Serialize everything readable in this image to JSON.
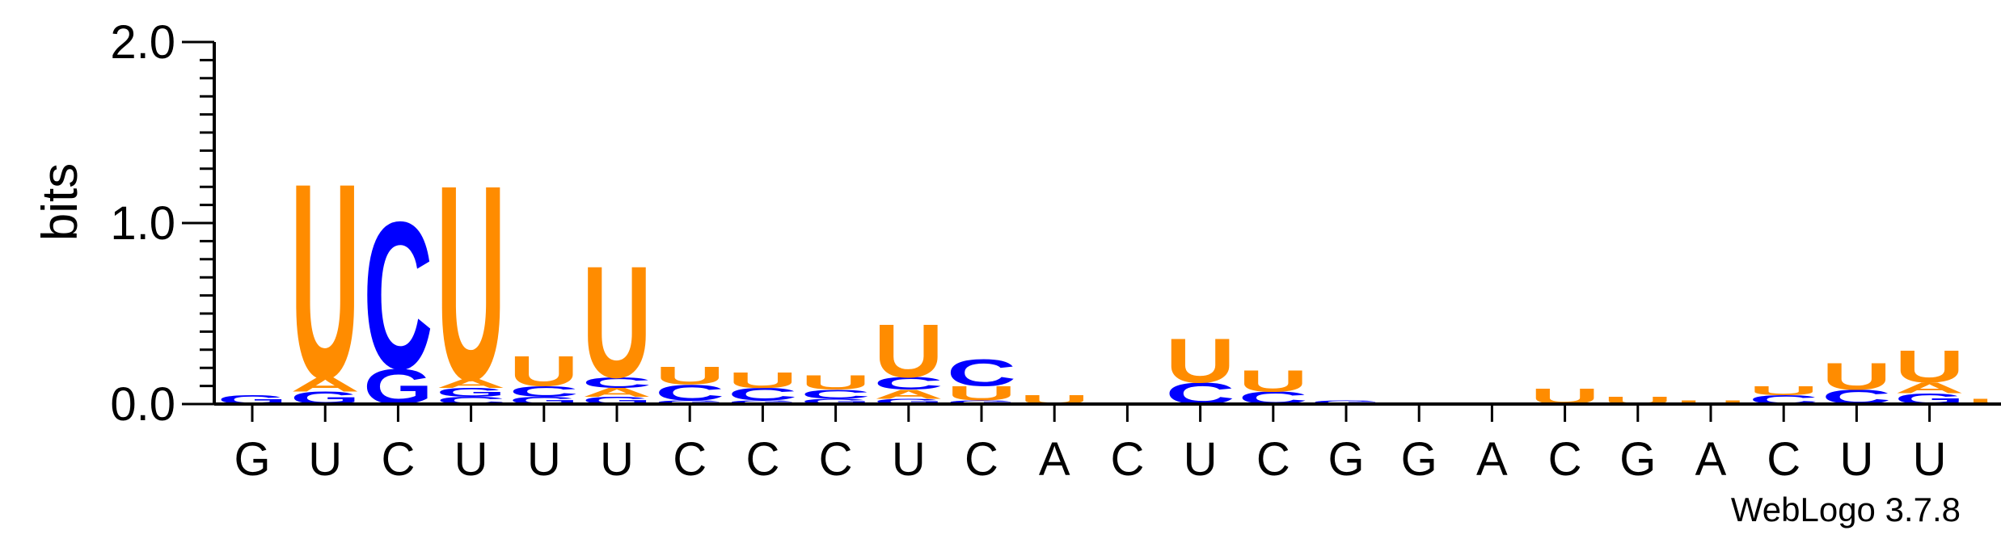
{
  "chart_data": {
    "type": "sequence-logo",
    "ylabel": "bits",
    "ylim": [
      0,
      2.0
    ],
    "y_ticks": [
      "0.0",
      "1.0",
      "2.0"
    ],
    "categories": [
      "G",
      "U",
      "C",
      "U",
      "U",
      "U",
      "C",
      "C",
      "C",
      "U",
      "C",
      "A",
      "C",
      "U",
      "C",
      "G",
      "G",
      "A",
      "C",
      "G",
      "A",
      "C",
      "U",
      "U"
    ],
    "footer": "WebLogo 3.7.8",
    "letter_colors": {
      "U": "#ff8c00",
      "C": "#0000ff",
      "G": "#0000ff",
      "A": "#ff8c00"
    },
    "stacks": [
      [
        [
          "G",
          0.05
        ]
      ],
      [
        [
          "G",
          0.07
        ],
        [
          "A",
          0.08
        ],
        [
          "U",
          1.1
        ]
      ],
      [
        [
          "G",
          0.2
        ],
        [
          "C",
          0.83
        ]
      ],
      [
        [
          "C",
          0.04
        ],
        [
          "G",
          0.05
        ],
        [
          "A",
          0.05
        ],
        [
          "U",
          1.1
        ]
      ],
      [
        [
          "G",
          0.04
        ],
        [
          "C",
          0.06
        ],
        [
          "U",
          0.17
        ]
      ],
      [
        [
          "G",
          0.04
        ],
        [
          "A",
          0.05
        ],
        [
          "C",
          0.06
        ],
        [
          "U",
          0.63
        ]
      ],
      [
        [
          "G",
          0.02
        ],
        [
          "C",
          0.09
        ],
        [
          "U",
          0.1
        ]
      ],
      [
        [
          "G",
          0.02
        ],
        [
          "C",
          0.07
        ],
        [
          "U",
          0.09
        ]
      ],
      [
        [
          "G",
          0.03
        ],
        [
          "C",
          0.05
        ],
        [
          "U",
          0.08
        ]
      ],
      [
        [
          "G",
          0.03
        ],
        [
          "A",
          0.05
        ],
        [
          "C",
          0.07
        ],
        [
          "U",
          0.3
        ]
      ],
      [
        [
          "G",
          0.02
        ],
        [
          "U",
          0.08
        ],
        [
          "C",
          0.15
        ]
      ],
      [
        [
          "U",
          0.05
        ]
      ],
      [],
      [
        [
          "C",
          0.12
        ],
        [
          "U",
          0.25
        ]
      ],
      [
        [
          "C",
          0.07
        ],
        [
          "U",
          0.12
        ]
      ],
      [
        [
          "G",
          0.02
        ]
      ],
      [],
      [],
      [
        [
          "U",
          0.09
        ]
      ],
      [
        [
          "U",
          0.04
        ]
      ],
      [
        [
          "U",
          0.02
        ]
      ],
      [
        [
          "C",
          0.05
        ],
        [
          "U",
          0.05
        ]
      ],
      [
        [
          "C",
          0.08
        ],
        [
          "U",
          0.15
        ]
      ],
      [
        [
          "G",
          0.06
        ],
        [
          "A",
          0.06
        ],
        [
          "U",
          0.18
        ]
      ]
    ],
    "trailing_stack": [
      [
        "U",
        0.03
      ]
    ]
  }
}
